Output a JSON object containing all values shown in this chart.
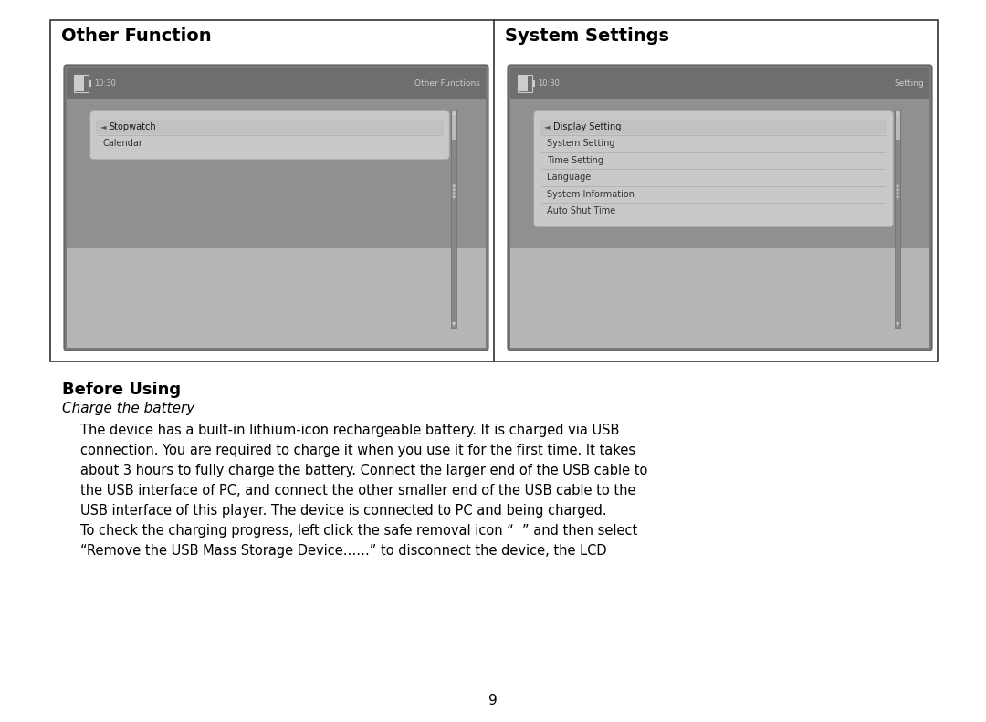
{
  "page_bg": "#ffffff",
  "panel_left_title": "Other Function",
  "panel_right_title": "System Settings",
  "left_screen_title": "Other Functions",
  "right_screen_title": "Setting",
  "time_text": "10:30",
  "left_menu_items": [
    "Stopwatch",
    "Calendar"
  ],
  "right_menu_items": [
    "Display Setting",
    "System Setting",
    "Time Setting",
    "Language",
    "System Information",
    "Auto Shut Time"
  ],
  "section_title": "Before Using",
  "subsection_title": "Charge the battery",
  "body_lines": [
    "The device has a built-in lithium-icon rechargeable battery. It is charged via USB",
    "connection. You are required to charge it when you use it for the first time. It takes",
    "about 3 hours to fully charge the battery. Connect the larger end of the USB cable to",
    "the USB interface of PC, and connect the other smaller end of the USB cable to the",
    "USB interface of this player. The device is connected to PC and being charged.",
    "To check the charging progress, left click the safe removal icon “  ” and then select",
    "“Remove the USB Mass Storage Device……” to disconnect the device, the LCD"
  ],
  "page_number": "9",
  "outer_box_color": "#333333",
  "screen_dark": "#7a7a7a",
  "screen_mid": "#909090",
  "screen_light": "#b8b8b8",
  "screen_lighter": "#cacaca",
  "status_bar_color": "#6e6e6e",
  "menu_panel_color": "#d2d2d2",
  "menu_selected_color": "#bebebe",
  "menu_text_dark": "#1a1a1a",
  "menu_text_mid": "#333333",
  "scrollbar_track": "#888888",
  "scrollbar_thumb": "#bbbbbb"
}
